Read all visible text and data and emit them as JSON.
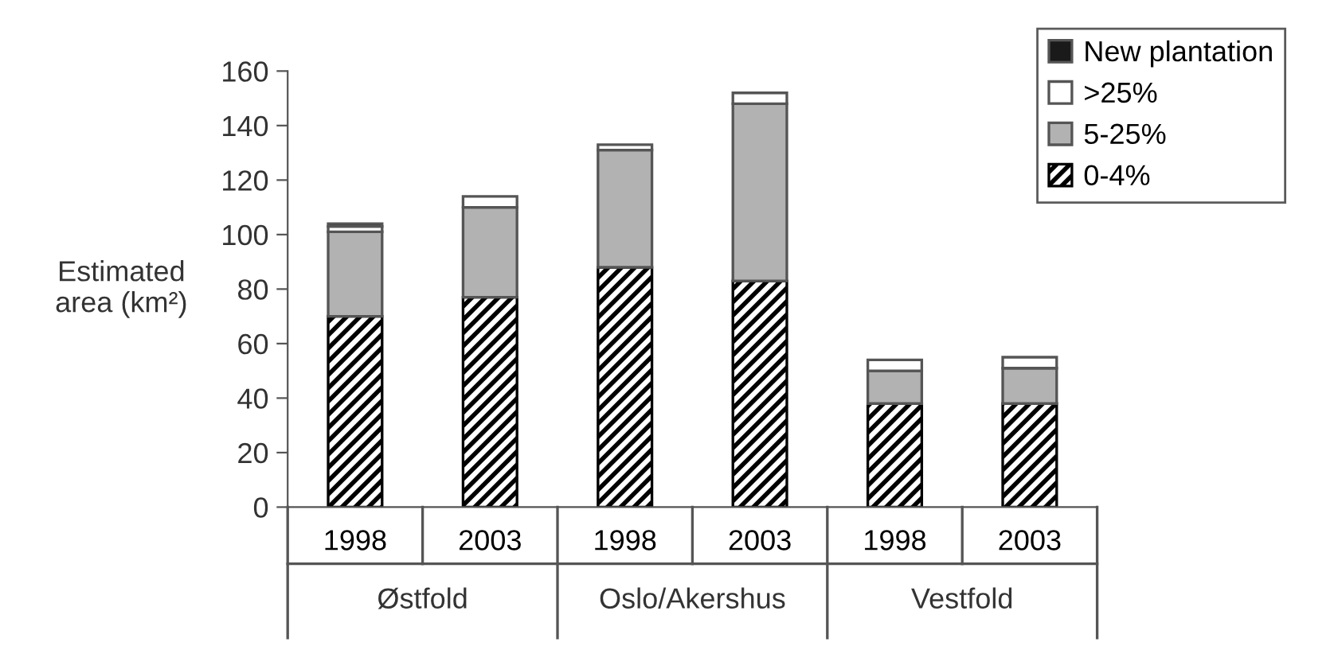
{
  "chart_data": {
    "type": "bar",
    "stacked": true,
    "ylabel": "Estimated\narea (km²)",
    "categories": [
      "1998",
      "2003",
      "1998",
      "2003",
      "1998",
      "2003"
    ],
    "annotations": [
      "Østfold",
      "Oslo/Akershus",
      "Vestfold"
    ],
    "series": [
      {
        "name": "0-4%",
        "color": "#000000",
        "values": [
          70,
          77,
          88,
          83,
          38,
          38
        ]
      },
      {
        "name": "5-25%",
        "color": "#b2b2b2",
        "values": [
          31,
          33,
          43,
          65,
          12,
          13
        ]
      },
      {
        "name": ">25%",
        "color": "#ffffff",
        "values": [
          2,
          4,
          2,
          4,
          4,
          4
        ]
      },
      {
        "name": "New plantation",
        "color": "#1a1a1a",
        "values": [
          1,
          0,
          0,
          0,
          0,
          0
        ]
      }
    ],
    "ylim": [
      0,
      160
    ],
    "yticks": [
      0,
      20,
      40,
      60,
      80,
      100,
      120,
      140,
      160
    ],
    "grid": false,
    "legend": "top right"
  }
}
